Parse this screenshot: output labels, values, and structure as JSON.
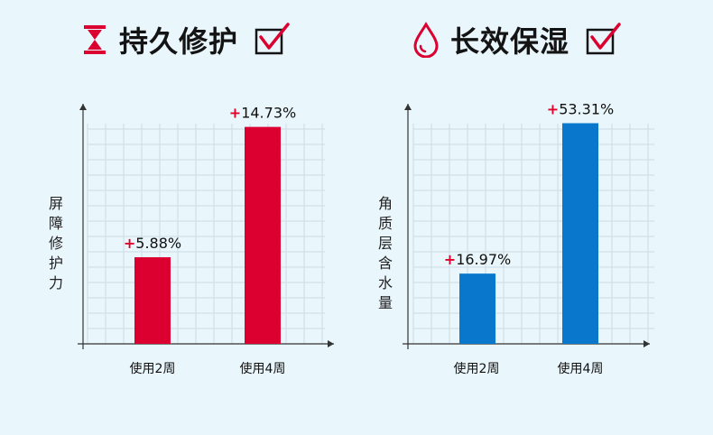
{
  "colors": {
    "red": "#dc0030",
    "blue": "#0877cc",
    "grid": "#cfdbe4",
    "axis": "#333333",
    "plus": "#e0002a"
  },
  "left": {
    "title": "持久修护",
    "title_icon": "hourglass-icon",
    "check_icon": "checkbox-checked-icon"
  },
  "right": {
    "title": "长效保湿",
    "title_icon": "water-drop-icon",
    "check_icon": "checkbox-checked-icon"
  },
  "chart_data": [
    {
      "type": "bar",
      "ylabel": "屏障修护力",
      "categories": [
        "使用2周",
        "使用4周"
      ],
      "values": [
        5.88,
        14.73
      ],
      "value_labels": [
        "5.88%",
        "14.73%"
      ],
      "value_prefix": "+",
      "bar_color": "#dc0030",
      "ylim": [
        0,
        16.3
      ],
      "grid": true
    },
    {
      "type": "bar",
      "ylabel": "角质层含水量",
      "categories": [
        "使用2周",
        "使用4周"
      ],
      "values": [
        16.97,
        53.31
      ],
      "value_labels": [
        "16.97%",
        "53.31%"
      ],
      "value_prefix": "+",
      "bar_color": "#0877cc",
      "ylim": [
        0,
        58
      ],
      "grid": true
    }
  ]
}
